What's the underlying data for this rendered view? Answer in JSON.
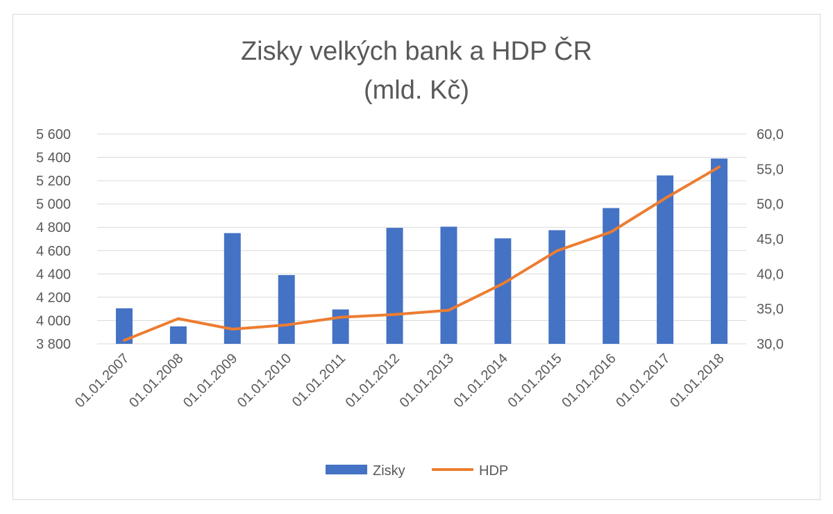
{
  "chart_data": {
    "type": "bar",
    "title": "Zisky velkých bank a HDP ČR",
    "subtitle": "(mld. Kč)",
    "categories": [
      "01.01.2007",
      "01.01.2008",
      "01.01.2009",
      "01.01.2010",
      "01.01.2011",
      "01.01.2012",
      "01.01.2013",
      "01.01.2014",
      "01.01.2015",
      "01.01.2016",
      "01.01.2017",
      "01.01.2018"
    ],
    "series": [
      {
        "name": "Zisky",
        "type": "bar",
        "axis": "left",
        "color": "#4472c4",
        "values": [
          4105,
          3950,
          4750,
          4390,
          4095,
          4795,
          4805,
          4705,
          4775,
          4965,
          5245,
          5390
        ]
      },
      {
        "name": "HDP",
        "type": "line",
        "axis": "right",
        "color": "#ed7d31",
        "values": [
          30.5,
          33.6,
          32.1,
          32.7,
          33.8,
          34.2,
          34.8,
          38.6,
          43.3,
          46.0,
          50.8,
          55.3
        ]
      }
    ],
    "y_left": {
      "min": 3800,
      "max": 5600,
      "ticks": [
        "5 600",
        "5 400",
        "5 200",
        "5 000",
        "4 800",
        "4 600",
        "4 400",
        "4 200",
        "4 000",
        "3 800"
      ]
    },
    "y_right": {
      "min": 30,
      "max": 60,
      "ticks": [
        "60,0",
        "55,0",
        "50,0",
        "45,0",
        "40,0",
        "35,0",
        "30,0"
      ]
    },
    "grid": true,
    "legend": "bottom"
  }
}
